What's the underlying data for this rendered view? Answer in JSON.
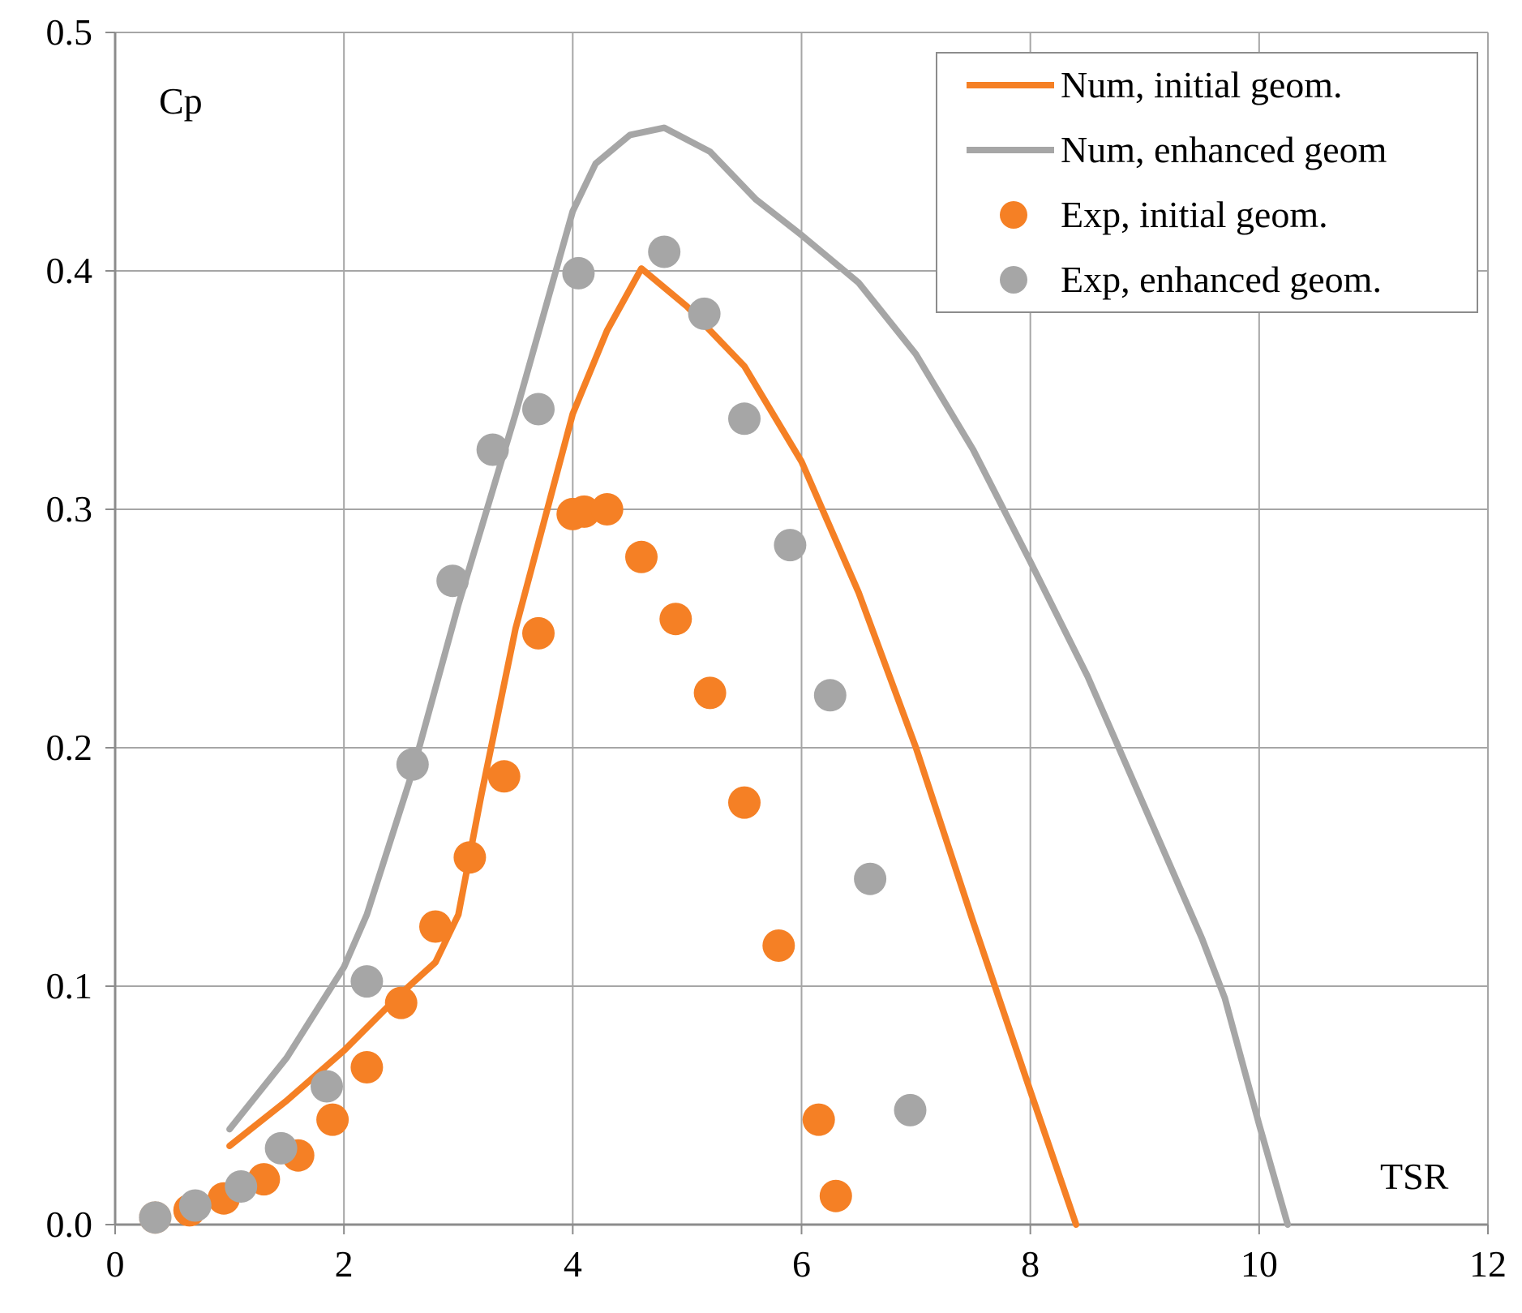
{
  "chart_data": {
    "type": "scatter",
    "title": "",
    "xlabel": "TSR",
    "ylabel": "Cp",
    "xlim": [
      0,
      12
    ],
    "ylim": [
      0,
      0.5
    ],
    "x_ticks": [
      "0",
      "2",
      "4",
      "6",
      "8",
      "10",
      "12"
    ],
    "y_ticks": [
      "0.0",
      "0.1",
      "0.2",
      "0.3",
      "0.4",
      "0.5"
    ],
    "grid": true,
    "legend_position": "top-right",
    "colors": {
      "orange": "#f58025",
      "gray": "#a6a6a6",
      "grid": "#a6a6a6"
    },
    "series": [
      {
        "name": "Num, initial geom.",
        "kind": "line",
        "color": "#f58025",
        "x": [
          1.0,
          1.5,
          2.0,
          2.5,
          2.8,
          3.0,
          3.2,
          3.5,
          4.0,
          4.3,
          4.6,
          5.0,
          5.5,
          6.0,
          6.5,
          7.0,
          7.5,
          8.0,
          8.4
        ],
        "y": [
          0.033,
          0.052,
          0.073,
          0.097,
          0.11,
          0.13,
          0.18,
          0.25,
          0.34,
          0.375,
          0.401,
          0.385,
          0.36,
          0.32,
          0.265,
          0.2,
          0.127,
          0.056,
          0.0
        ]
      },
      {
        "name": "Num, enhanced geom",
        "kind": "line",
        "color": "#a6a6a6",
        "x": [
          1.0,
          1.5,
          2.0,
          2.2,
          2.6,
          3.0,
          3.5,
          4.0,
          4.2,
          4.5,
          4.8,
          5.2,
          5.6,
          6.0,
          6.5,
          7.0,
          7.5,
          8.0,
          8.5,
          9.0,
          9.5,
          9.7,
          10.0,
          10.25
        ],
        "y": [
          0.04,
          0.07,
          0.108,
          0.13,
          0.19,
          0.26,
          0.34,
          0.425,
          0.445,
          0.457,
          0.46,
          0.45,
          0.43,
          0.415,
          0.395,
          0.365,
          0.325,
          0.278,
          0.23,
          0.175,
          0.12,
          0.095,
          0.042,
          0.0
        ]
      },
      {
        "name": "Exp, initial geom.",
        "kind": "points",
        "color": "#f58025",
        "x": [
          0.35,
          0.65,
          0.95,
          1.3,
          1.6,
          1.9,
          2.2,
          2.5,
          2.8,
          3.1,
          3.4,
          3.7,
          4.0,
          4.1,
          4.3,
          4.6,
          4.9,
          5.2,
          5.5,
          5.8,
          6.15,
          6.3
        ],
        "y": [
          0.003,
          0.006,
          0.011,
          0.019,
          0.029,
          0.044,
          0.066,
          0.093,
          0.125,
          0.154,
          0.188,
          0.248,
          0.298,
          0.299,
          0.3,
          0.28,
          0.254,
          0.223,
          0.177,
          0.117,
          0.044,
          0.012
        ]
      },
      {
        "name": "Exp, enhanced geom.",
        "kind": "points",
        "color": "#a6a6a6",
        "x": [
          0.35,
          0.7,
          1.1,
          1.45,
          1.85,
          2.2,
          2.6,
          2.95,
          3.3,
          3.7,
          4.05,
          4.8,
          5.15,
          5.5,
          5.9,
          6.25,
          6.6,
          6.95
        ],
        "y": [
          0.003,
          0.008,
          0.016,
          0.032,
          0.058,
          0.102,
          0.193,
          0.27,
          0.325,
          0.342,
          0.399,
          0.408,
          0.382,
          0.338,
          0.285,
          0.222,
          0.145,
          0.048
        ]
      }
    ]
  }
}
